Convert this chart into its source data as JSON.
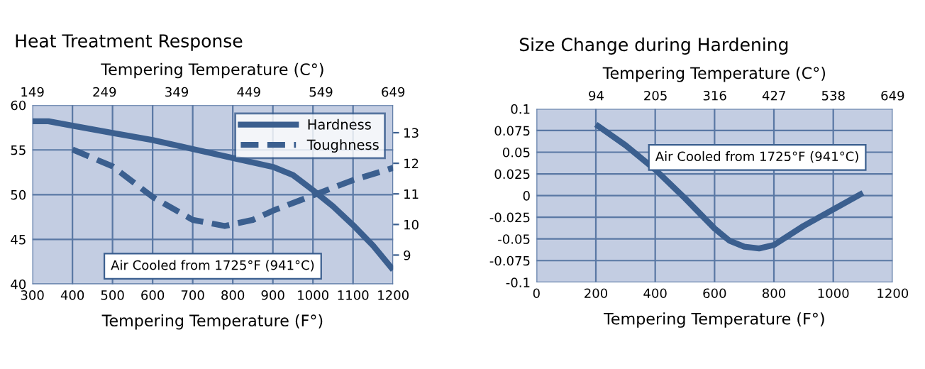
{
  "chart_data": [
    {
      "type": "line",
      "title": "Heat Treatment Response",
      "xlabel": "Tempering Temperature (F°)",
      "x2label": "Tempering Temperature (C°)",
      "xlim": [
        300,
        1200
      ],
      "xticks": [
        300,
        400,
        500,
        600,
        700,
        800,
        900,
        1000,
        1100,
        1200
      ],
      "x2lim": [
        149,
        649
      ],
      "x2ticks": [
        149,
        249,
        349,
        449,
        549,
        649
      ],
      "ylim": [
        40,
        60
      ],
      "yticks": [
        40,
        45,
        50,
        55,
        60
      ],
      "y2lim": [
        8.05,
        13.9
      ],
      "y2ticks": [
        9,
        10,
        11,
        12,
        13
      ],
      "grid": true,
      "legend": "top right",
      "series": [
        {
          "name": "Hardness",
          "color": "#3b5f8f",
          "line_style": "solid",
          "x": [
            300,
            340,
            400,
            500,
            600,
            700,
            800,
            900,
            950,
            1000,
            1050,
            1100,
            1150,
            1200
          ],
          "values": [
            58.2,
            58.2,
            57.7,
            56.9,
            56.1,
            55.1,
            54.1,
            53.1,
            52.2,
            50.5,
            48.7,
            46.6,
            44.3,
            41.6
          ]
        },
        {
          "name": "Toughness",
          "color": "#3b5f8f",
          "line_style": "dashed",
          "axis": "y2",
          "x": [
            400,
            500,
            600,
            700,
            780,
            850,
            900,
            1000,
            1100,
            1200
          ],
          "values": [
            12.45,
            11.9,
            10.9,
            10.15,
            9.95,
            10.15,
            10.45,
            10.95,
            11.45,
            11.85
          ]
        }
      ],
      "annotations": [
        "Air Cooled from 1725°F (941°C)"
      ]
    },
    {
      "type": "line",
      "title": "Size Change during Hardening",
      "xlabel": "Tempering Temperature (F°)",
      "x2label": "Tempering Temperature (C°)",
      "xlim": [
        0,
        1200
      ],
      "xticks": [
        0,
        200,
        400,
        600,
        800,
        1000,
        1200
      ],
      "x2lim": [
        -17.8,
        649
      ],
      "x2ticks": [
        94,
        205,
        316,
        427,
        538,
        649
      ],
      "ylim": [
        -0.1,
        0.1
      ],
      "yticks": [
        -0.1,
        -0.075,
        -0.05,
        -0.025,
        0,
        0.025,
        0.05,
        0.075,
        0.1
      ],
      "grid": true,
      "series": [
        {
          "color": "#3b5f8f",
          "line_style": "solid",
          "x": [
            200,
            300,
            400,
            500,
            600,
            650,
            700,
            750,
            800,
            900,
            1000,
            1100
          ],
          "values": [
            0.082,
            0.058,
            0.03,
            -0.003,
            -0.038,
            -0.052,
            -0.059,
            -0.061,
            -0.057,
            -0.035,
            -0.016,
            0.003
          ]
        }
      ],
      "annotations": [
        "Air Cooled from 1725°F (941°C)"
      ]
    }
  ]
}
